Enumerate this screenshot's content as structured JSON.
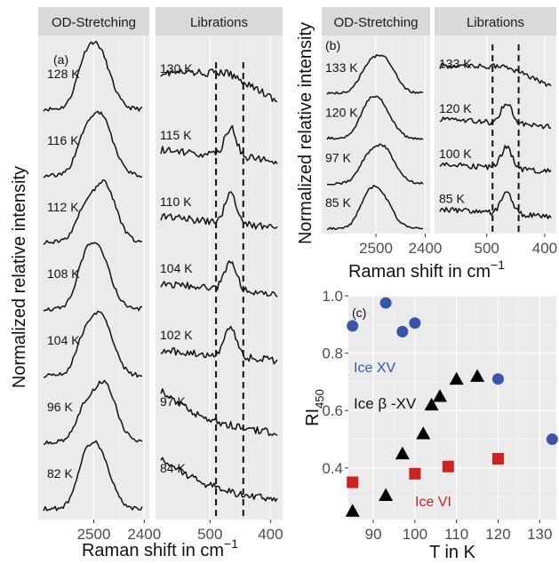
{
  "chart_data": [
    {
      "panel": "(a)",
      "type": "line",
      "facets": [
        "OD-Stretching",
        "Librations"
      ],
      "ylabel": "Normalized relative intensity",
      "xlabel": "Raman shift in  cm",
      "xlabel_sup": "−1",
      "facet_xticks": {
        "OD-Stretching": [
          {
            "value": 2500,
            "label": "2500"
          },
          {
            "value": 2400,
            "label": "2400"
          }
        ],
        "Librations": [
          {
            "value": 500,
            "label": "500"
          },
          {
            "value": 400,
            "label": "400"
          }
        ]
      },
      "stretch_traces": [
        "128 K",
        "116 K",
        "112 K",
        "108 K",
        "104 K",
        "96 K",
        "82 K"
      ],
      "libration_traces": [
        "130 K",
        "115 K",
        "110 K",
        "104 K",
        "102 K",
        "97 K",
        "84 K"
      ],
      "dashed_lines_cm": [
        490,
        445
      ]
    },
    {
      "panel": "(b)",
      "type": "line",
      "facets": [
        "OD-Stretching",
        "Librations"
      ],
      "ylabel": "Normalized relative intensity",
      "xlabel": "Raman shift in  cm",
      "xlabel_sup": "−1",
      "facet_xticks": {
        "OD-Stretching": [
          {
            "value": 2500,
            "label": "2500"
          },
          {
            "value": 2400,
            "label": "2400"
          }
        ],
        "Librations": [
          {
            "value": 500,
            "label": "500"
          },
          {
            "value": 400,
            "label": "400"
          }
        ]
      },
      "stretch_traces": [
        "133 K",
        "120 K",
        "97 K",
        "85 K"
      ],
      "libration_traces": [
        "133 K",
        "120 K",
        "100 K",
        "85 K"
      ],
      "dashed_lines_cm": [
        490,
        445
      ]
    },
    {
      "panel": "(c)",
      "type": "scatter",
      "xlabel": "T in K",
      "ylabel": "RI",
      "ylabel_sub": "450",
      "xlim": [
        84,
        134
      ],
      "ylim": [
        0.22,
        1.0
      ],
      "xticks": [
        90,
        100,
        110,
        120,
        130
      ],
      "yticks": [
        0.4,
        0.6,
        0.8,
        1.0
      ],
      "ytick_labels": [
        "0.4",
        "0.6",
        "0.8",
        "1.0"
      ],
      "series": [
        {
          "name": "Ice XV",
          "marker": "circle",
          "color": "#3a55a8",
          "points": [
            [
              85,
              0.895
            ],
            [
              93,
              0.975
            ],
            [
              97,
              0.875
            ],
            [
              100,
              0.905
            ],
            [
              120,
              0.71
            ],
            [
              133,
              0.5
            ]
          ]
        },
        {
          "name": "Ice  β -XV",
          "marker": "triangle",
          "color": "#000000",
          "points": [
            [
              85,
              0.25
            ],
            [
              93,
              0.305
            ],
            [
              97,
              0.45
            ],
            [
              102,
              0.52
            ],
            [
              104,
              0.62
            ],
            [
              106,
              0.65
            ],
            [
              110,
              0.71
            ],
            [
              115,
              0.72
            ]
          ]
        },
        {
          "name": "Ice VI",
          "marker": "square",
          "color": "#cc2222",
          "points": [
            [
              85,
              0.35
            ],
            [
              100,
              0.38
            ],
            [
              108,
              0.405
            ],
            [
              120,
              0.432
            ]
          ]
        }
      ]
    }
  ]
}
